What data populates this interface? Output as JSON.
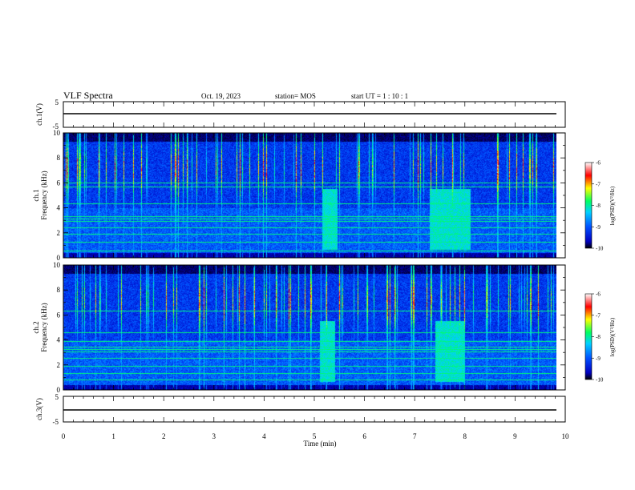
{
  "header": {
    "title": "VLF Spectra",
    "date": "Oct. 19, 2023",
    "station": "station= MOS",
    "start_ut": "start  UT =   1 : 10 : 1"
  },
  "chart_data": {
    "type": "heatmap",
    "x_axis": {
      "label": "Time  (min)",
      "range": [
        0,
        10
      ],
      "ticks": [
        "0",
        "1",
        "2",
        "3",
        "4",
        "5",
        "6",
        "7",
        "8",
        "9",
        "10"
      ],
      "data_end": 9.83
    },
    "panels": [
      {
        "id": "ch1-waveform",
        "type": "line",
        "ylabel": "ch.1(V)",
        "ylim": [
          -5,
          5
        ],
        "ytick_labels": [
          "5",
          "-5"
        ],
        "level": 0
      },
      {
        "id": "ch1-spectrogram",
        "type": "heatmap",
        "ylabel": "ch.1\nFrequency  (kHz)",
        "ylabel_lines": [
          "ch.1",
          "Frequency  (kHz)"
        ],
        "ylim": [
          0,
          10
        ],
        "ytick_labels": [
          "0",
          "2",
          "4",
          "6",
          "8",
          "10"
        ],
        "horizontal_lines_khz": [
          0.5,
          1.2,
          1.9,
          2.4,
          2.9,
          3.1,
          3.3,
          4.3,
          5.7,
          6.0
        ],
        "dense_bursts_min": [
          [
            5.15,
            5.45
          ],
          [
            7.3,
            8.1
          ]
        ],
        "seed": 11
      },
      {
        "id": "ch2-spectrogram",
        "type": "heatmap",
        "ylabel": "ch.2\nFrequency  (kHz)",
        "ylabel_lines": [
          "ch.2",
          "Frequency  (kHz)"
        ],
        "ylim": [
          0,
          10
        ],
        "ytick_labels": [
          "0",
          "2",
          "4",
          "6",
          "8",
          "10"
        ],
        "horizontal_lines_khz": [
          0.8,
          1.3,
          1.9,
          2.5,
          3.0,
          3.2,
          3.4,
          3.9,
          4.6,
          6.3
        ],
        "dense_bursts_min": [
          [
            5.1,
            5.4
          ],
          [
            7.4,
            8.0
          ]
        ],
        "seed": 29
      },
      {
        "id": "ch3-waveform",
        "type": "line",
        "ylabel": "ch.3(V)",
        "ylim": [
          -5,
          5
        ],
        "ytick_labels": [
          "5",
          "-5"
        ],
        "level": 0
      }
    ],
    "colorbar": {
      "label": "log(PSD)(V²/Hz)",
      "range": [
        -10,
        -6
      ],
      "tick_labels": [
        "-6",
        "-7",
        "-8",
        "-9",
        "-10"
      ],
      "colors": [
        "#000000",
        "#0000ff",
        "#00c8ff",
        "#00ff80",
        "#ffff00",
        "#ff0000",
        "#ffffff"
      ]
    }
  }
}
